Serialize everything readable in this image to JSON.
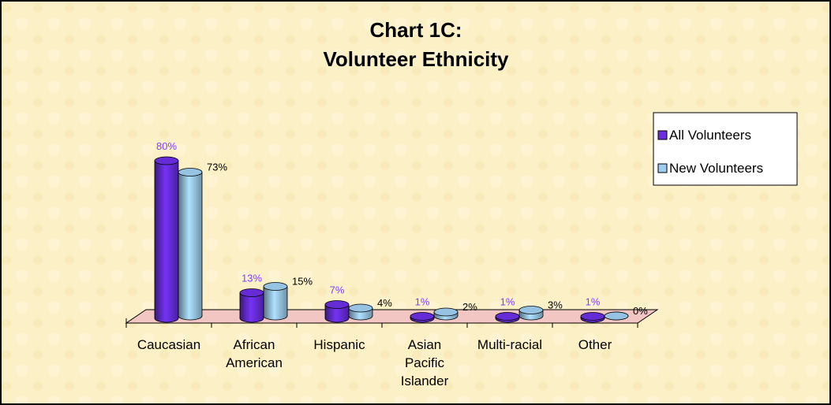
{
  "chart_data": {
    "type": "bar3d",
    "title": [
      "Chart 1C:",
      "Volunteer Ethnicity"
    ],
    "categories": [
      "Caucasian",
      "African American",
      "Hispanic",
      "Asian Pacific Islander",
      "Multi-racial",
      "Other"
    ],
    "series": [
      {
        "name": "All Volunteers",
        "color": "#6a2ee0",
        "label_color": "#8040ff",
        "values": [
          80,
          13,
          7,
          1,
          1,
          1
        ],
        "value_labels": [
          "80%",
          "13%",
          "7%",
          "1%",
          "1%",
          "1%"
        ]
      },
      {
        "name": "New Volunteers",
        "color": "#9fcdef",
        "label_color": "#000000",
        "values": [
          73,
          15,
          4,
          2,
          3,
          0
        ],
        "value_labels": [
          "73%",
          "15%",
          "4%",
          "2%",
          "3%",
          "0%"
        ]
      }
    ],
    "ylim": [
      0,
      90
    ],
    "legend": "right"
  }
}
